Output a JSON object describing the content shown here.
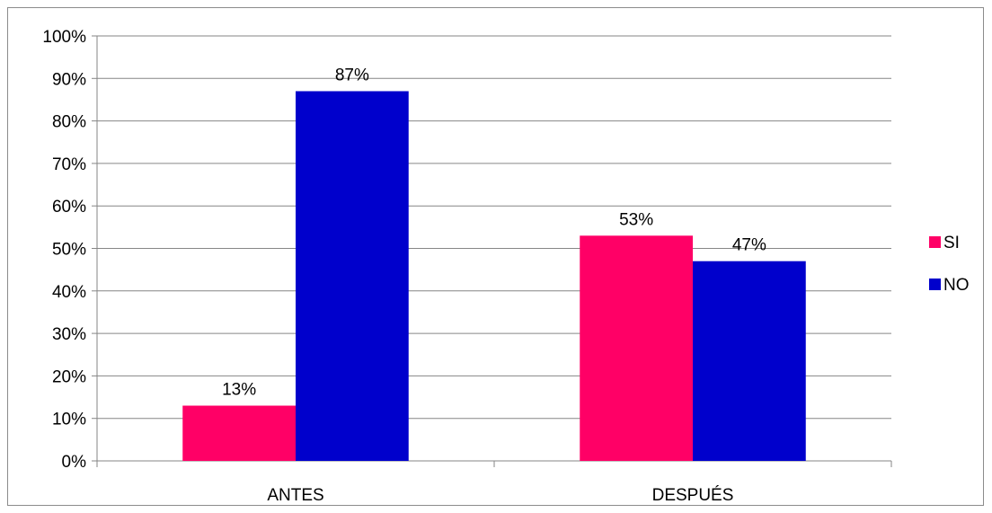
{
  "chart_data": {
    "type": "bar",
    "categories": [
      "ANTES",
      "DESPUÉS"
    ],
    "series": [
      {
        "name": "SI",
        "values": [
          13,
          53
        ],
        "color": "#ff0066"
      },
      {
        "name": "NO",
        "values": [
          87,
          47
        ],
        "color": "#0000cc"
      }
    ],
    "data_labels": [
      [
        "13%",
        "53%"
      ],
      [
        "87%",
        "47%"
      ]
    ],
    "yticks": [
      "0%",
      "10%",
      "20%",
      "30%",
      "40%",
      "50%",
      "60%",
      "70%",
      "80%",
      "90%",
      "100%"
    ],
    "ylim": [
      0,
      100
    ],
    "grid": true,
    "legend_position": "right",
    "title": "",
    "xlabel": "",
    "ylabel": ""
  }
}
